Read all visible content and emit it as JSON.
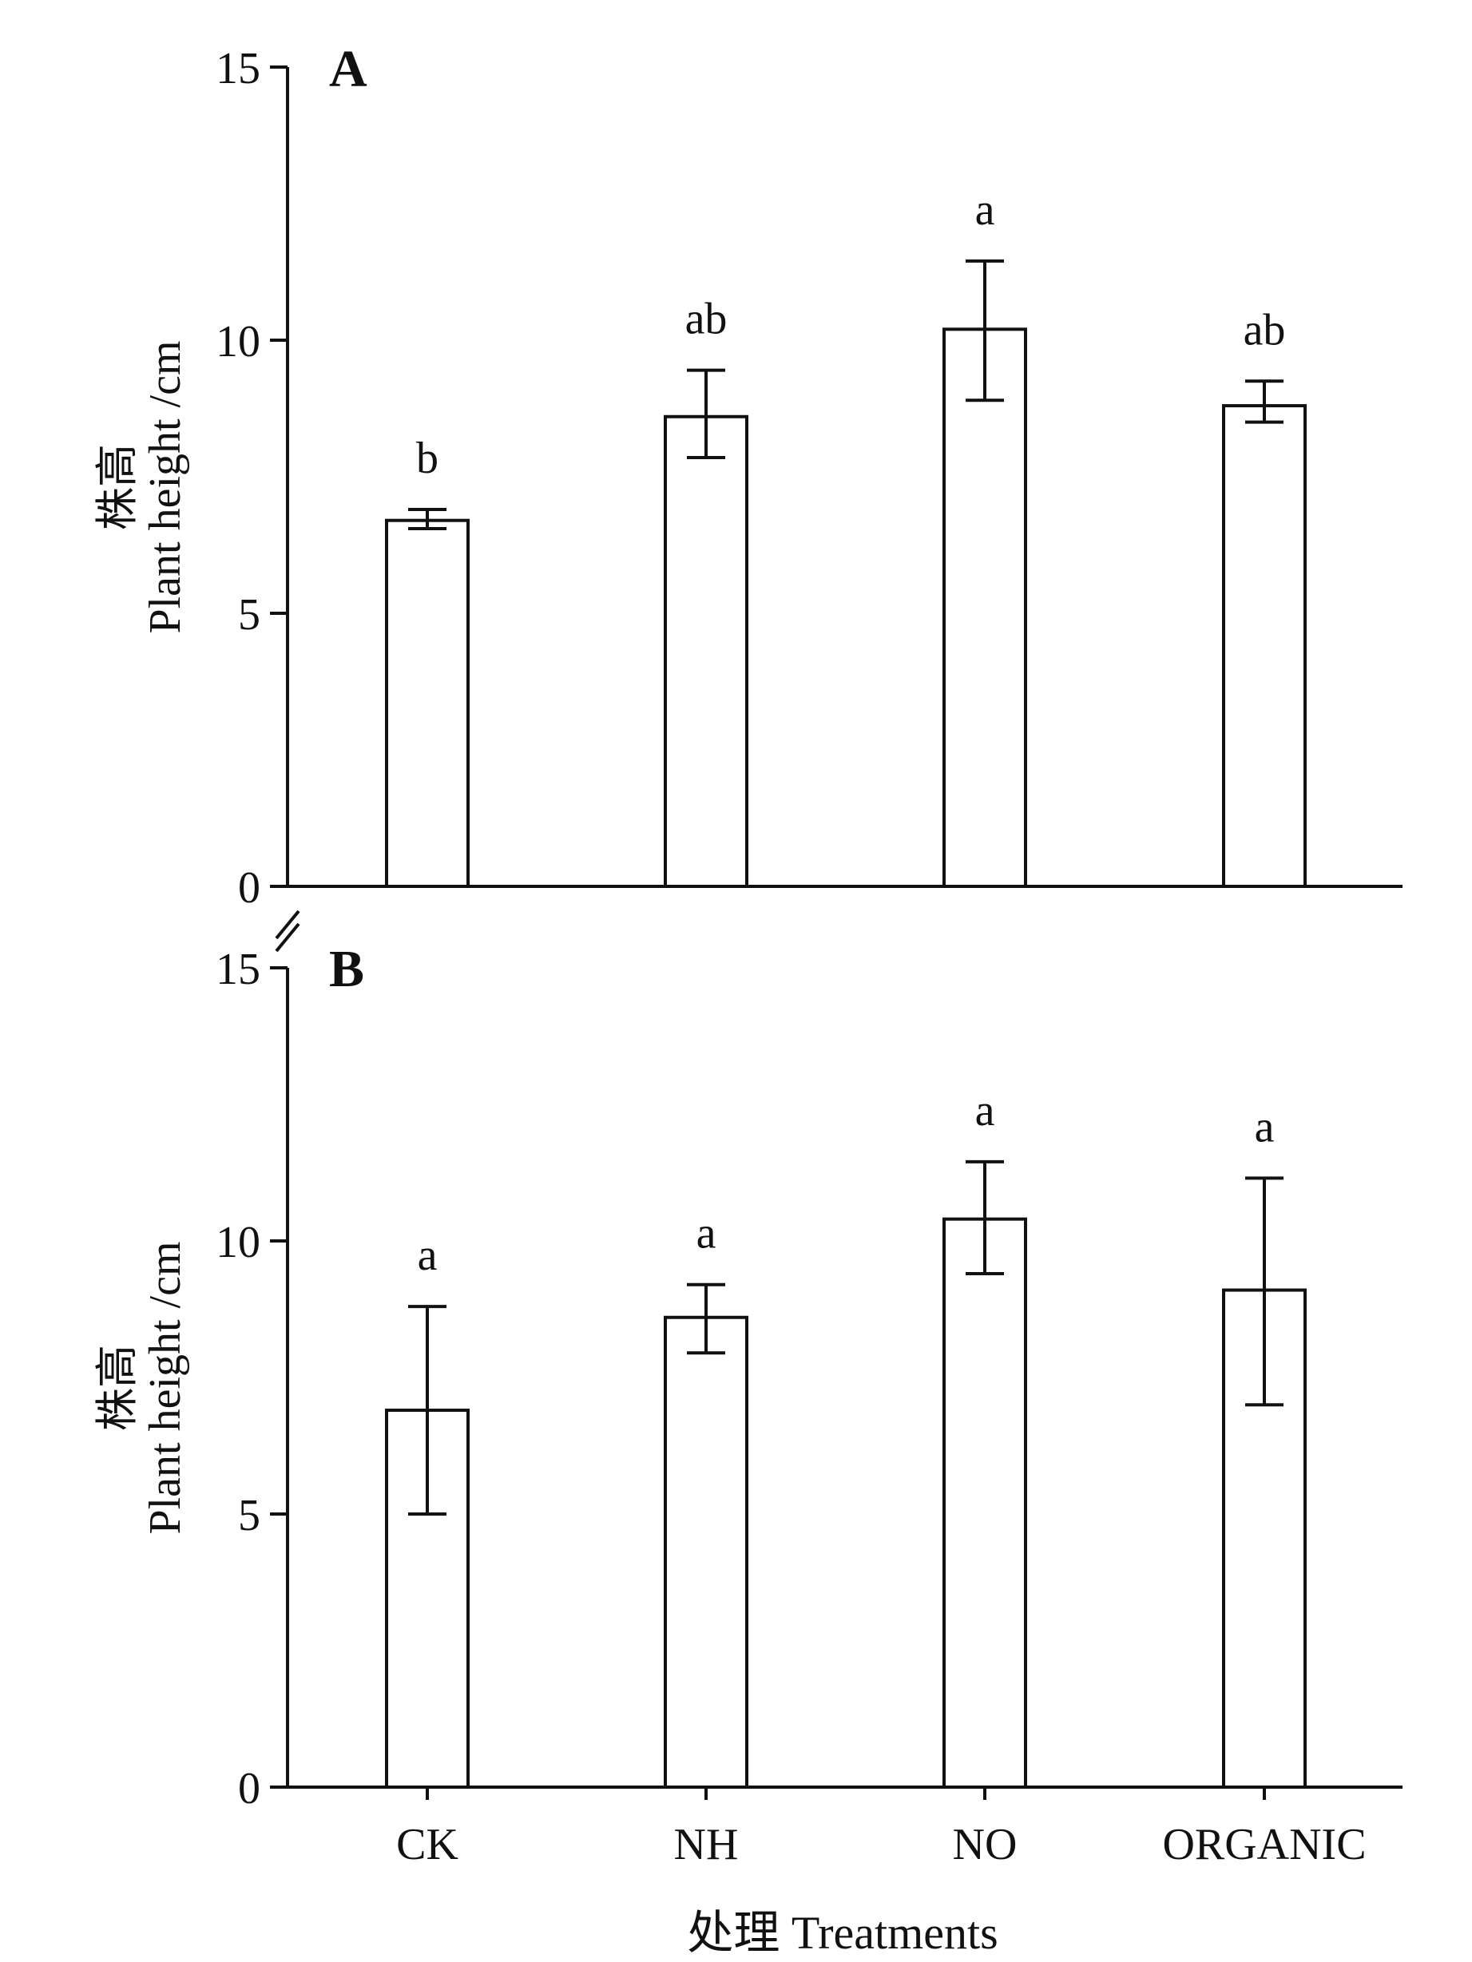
{
  "figure": {
    "ylabel_cn": "株高",
    "ylabel_en": "Plant height /cm",
    "xlabel": "处理 Treatments",
    "colors": {
      "ink": "#111111",
      "bar_fill": "#ffffff"
    }
  },
  "chart_data": [
    {
      "type": "bar",
      "panel": "A",
      "categories": [
        "CK",
        "NH",
        "NO",
        "ORGANIC"
      ],
      "values": [
        6.7,
        8.6,
        10.2,
        8.8
      ],
      "error_low": [
        6.55,
        7.85,
        8.9,
        8.5
      ],
      "error_high": [
        6.9,
        9.45,
        11.45,
        9.25
      ],
      "letters": [
        "b",
        "ab",
        "a",
        "ab"
      ],
      "ylabel": "株高 Plant height /cm",
      "ylim": [
        0,
        15
      ],
      "yticks": [
        0,
        5,
        10,
        15
      ],
      "grid": false
    },
    {
      "type": "bar",
      "panel": "B",
      "categories": [
        "CK",
        "NH",
        "NO",
        "ORGANIC"
      ],
      "values": [
        6.9,
        8.6,
        10.4,
        9.1
      ],
      "error_low": [
        5.0,
        7.95,
        9.4,
        7.0
      ],
      "error_high": [
        8.8,
        9.2,
        11.45,
        11.15
      ],
      "letters": [
        "a",
        "a",
        "a",
        "a"
      ],
      "ylabel": "株高 Plant height /cm",
      "xlabel": "处理 Treatments",
      "ylim": [
        0,
        15
      ],
      "yticks": [
        0,
        5,
        10,
        15
      ],
      "grid": false
    }
  ]
}
